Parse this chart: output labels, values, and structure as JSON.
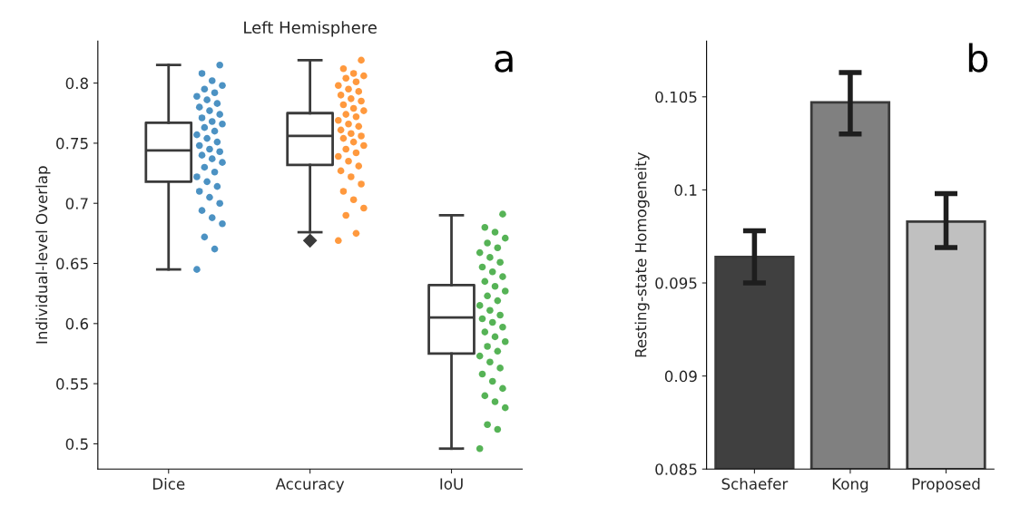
{
  "chart_data": [
    {
      "type": "box",
      "title": "Left Hemisphere",
      "ylabel": "Individual-level Overlap",
      "categories": [
        "Dice",
        "Accuracy",
        "IoU"
      ],
      "boxes": [
        {
          "low": 0.645,
          "q1": 0.718,
          "median": 0.744,
          "q3": 0.767,
          "high": 0.815
        },
        {
          "low": 0.676,
          "q1": 0.732,
          "median": 0.756,
          "q3": 0.775,
          "high": 0.819,
          "outliers": [
            0.669
          ]
        },
        {
          "low": 0.496,
          "q1": 0.575,
          "median": 0.605,
          "q3": 0.632,
          "high": 0.69
        }
      ],
      "series": [
        {
          "type": "scatter",
          "color": "#1f77b4",
          "x": [
            "Dice",
            "Dice",
            "Dice",
            "Dice",
            "Dice",
            "Dice",
            "Dice",
            "Dice",
            "Dice",
            "Dice",
            "Dice",
            "Dice",
            "Dice",
            "Dice",
            "Dice",
            "Dice",
            "Dice",
            "Dice",
            "Dice",
            "Dice",
            "Dice",
            "Dice",
            "Dice",
            "Dice",
            "Dice",
            "Dice",
            "Dice",
            "Dice",
            "Dice",
            "Dice",
            "Dice",
            "Dice",
            "Dice",
            "Dice",
            "Dice",
            "Dice",
            "Dice",
            "Dice",
            "Dice",
            "Dice"
          ],
          "values": [
            0.645,
            0.662,
            0.672,
            0.683,
            0.688,
            0.694,
            0.7,
            0.705,
            0.71,
            0.714,
            0.718,
            0.722,
            0.726,
            0.73,
            0.734,
            0.737,
            0.74,
            0.743,
            0.745,
            0.748,
            0.751,
            0.754,
            0.757,
            0.76,
            0.763,
            0.766,
            0.768,
            0.771,
            0.774,
            0.777,
            0.78,
            0.783,
            0.786,
            0.789,
            0.792,
            0.795,
            0.798,
            0.802,
            0.808,
            0.815
          ]
        },
        {
          "type": "scatter",
          "color": "#ff7f0e",
          "x": [
            "Accuracy",
            "Accuracy",
            "Accuracy",
            "Accuracy",
            "Accuracy",
            "Accuracy",
            "Accuracy",
            "Accuracy",
            "Accuracy",
            "Accuracy",
            "Accuracy",
            "Accuracy",
            "Accuracy",
            "Accuracy",
            "Accuracy",
            "Accuracy",
            "Accuracy",
            "Accuracy",
            "Accuracy",
            "Accuracy",
            "Accuracy",
            "Accuracy",
            "Accuracy",
            "Accuracy",
            "Accuracy",
            "Accuracy",
            "Accuracy",
            "Accuracy",
            "Accuracy",
            "Accuracy",
            "Accuracy",
            "Accuracy",
            "Accuracy",
            "Accuracy",
            "Accuracy",
            "Accuracy",
            "Accuracy",
            "Accuracy",
            "Accuracy",
            "Accuracy"
          ],
          "values": [
            0.669,
            0.675,
            0.69,
            0.696,
            0.703,
            0.71,
            0.716,
            0.722,
            0.727,
            0.731,
            0.735,
            0.739,
            0.742,
            0.745,
            0.748,
            0.751,
            0.754,
            0.756,
            0.758,
            0.761,
            0.764,
            0.766,
            0.769,
            0.772,
            0.774,
            0.777,
            0.779,
            0.782,
            0.785,
            0.787,
            0.79,
            0.793,
            0.795,
            0.798,
            0.801,
            0.804,
            0.806,
            0.808,
            0.812,
            0.819
          ]
        },
        {
          "type": "scatter",
          "color": "#2ca02c",
          "x": [
            "IoU",
            "IoU",
            "IoU",
            "IoU",
            "IoU",
            "IoU",
            "IoU",
            "IoU",
            "IoU",
            "IoU",
            "IoU",
            "IoU",
            "IoU",
            "IoU",
            "IoU",
            "IoU",
            "IoU",
            "IoU",
            "IoU",
            "IoU",
            "IoU",
            "IoU",
            "IoU",
            "IoU",
            "IoU",
            "IoU",
            "IoU",
            "IoU",
            "IoU",
            "IoU",
            "IoU",
            "IoU",
            "IoU",
            "IoU",
            "IoU",
            "IoU",
            "IoU",
            "IoU",
            "IoU",
            "IoU"
          ],
          "values": [
            0.496,
            0.512,
            0.516,
            0.53,
            0.535,
            0.54,
            0.546,
            0.552,
            0.558,
            0.563,
            0.568,
            0.573,
            0.577,
            0.581,
            0.585,
            0.589,
            0.593,
            0.597,
            0.601,
            0.604,
            0.607,
            0.611,
            0.615,
            0.619,
            0.623,
            0.627,
            0.631,
            0.635,
            0.639,
            0.643,
            0.647,
            0.651,
            0.655,
            0.659,
            0.663,
            0.667,
            0.671,
            0.676,
            0.68,
            0.691
          ]
        }
      ],
      "ylim": [
        0.479,
        0.835
      ],
      "yticks": [
        0.5,
        0.55,
        0.6,
        0.65,
        0.7,
        0.75,
        0.8
      ],
      "annotations": [
        "a"
      ],
      "grid": false,
      "legend": false
    },
    {
      "type": "bar",
      "ylabel": "Resting-state Homogeneity",
      "categories": [
        "Schaefer",
        "Kong",
        "Proposed"
      ],
      "values": [
        0.0964,
        0.1047,
        0.0983
      ],
      "colors": [
        "#404040",
        "#808080",
        "#c0c0c0"
      ],
      "errors": [
        [
          0.095,
          0.0978
        ],
        [
          0.103,
          0.1063
        ],
        [
          0.0969,
          0.0998
        ]
      ],
      "ylim": [
        0.085,
        0.108
      ],
      "yticks": [
        0.085,
        0.09,
        0.095,
        0.1,
        0.105
      ],
      "annotations": [
        "b"
      ],
      "grid": false,
      "legend": false
    }
  ]
}
